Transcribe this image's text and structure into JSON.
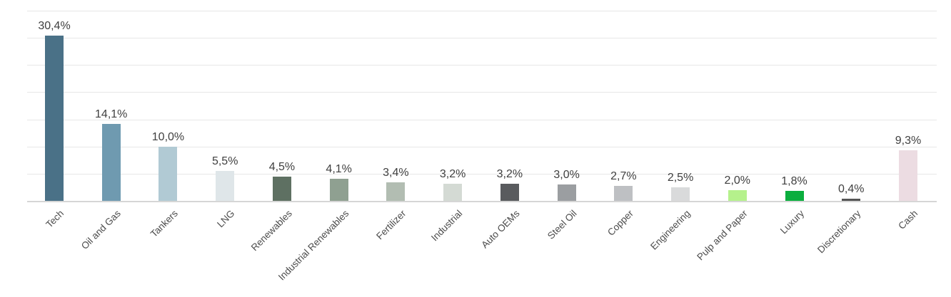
{
  "chart_data": {
    "type": "bar",
    "title": "",
    "xlabel": "",
    "ylabel": "",
    "categories": [
      "Tech",
      "Oil and Gas",
      "Tankers",
      "LNG",
      "Renewables",
      "Industrial Renewables",
      "Fertilizer",
      "Industrial",
      "Auto OEMs",
      "Steel Oil",
      "Copper",
      "Engineering",
      "Pulp and Paper",
      "Luxury",
      "Discretionary",
      "Cash"
    ],
    "values": [
      30.4,
      14.1,
      10.0,
      5.5,
      4.5,
      4.1,
      3.4,
      3.2,
      3.2,
      3.0,
      2.7,
      2.5,
      2.0,
      1.8,
      0.4,
      9.3
    ],
    "display_values": [
      "30,4%",
      "14,1%",
      "10,0%",
      "5,5%",
      "4,5%",
      "4,1%",
      "3,4%",
      "3,2%",
      "3,2%",
      "3,0%",
      "2,7%",
      "2,5%",
      "2,0%",
      "1,8%",
      "0,4%",
      "9,3%"
    ],
    "bar_colors": [
      "#4a7187",
      "#6f9ab0",
      "#b1cad4",
      "#dfe6e9",
      "#5e7062",
      "#8fa091",
      "#b2bdb2",
      "#d4dad4",
      "#595b5e",
      "#9b9ea1",
      "#bec0c3",
      "#d9dadb",
      "#b5f18c",
      "#0bae3e",
      "#555555",
      "#ecdce2"
    ],
    "ylim": [
      0,
      35
    ],
    "gridline_step": 5,
    "grid": true,
    "legend": "none",
    "value_label_color": "#3f3f3f",
    "category_label_color": "#4c4c4c",
    "gridline_color": "#e7e7e7",
    "axis_line_color": "#d6d6d6",
    "background": "#ffffff"
  }
}
